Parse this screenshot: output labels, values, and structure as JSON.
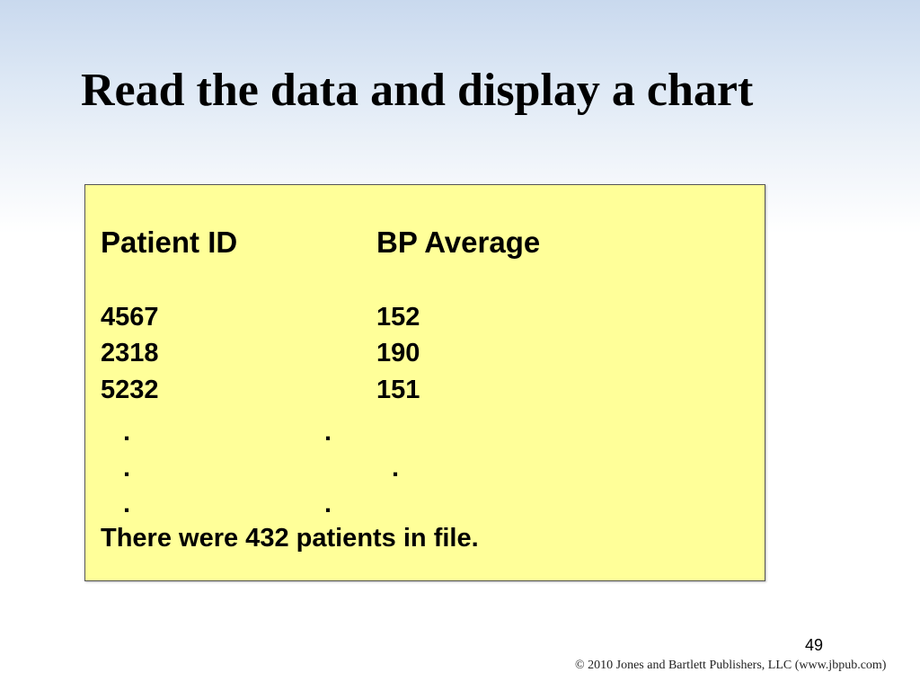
{
  "slide": {
    "title": "Read the data and display a chart",
    "page_number": "49",
    "copyright": "© 2010 Jones and Bartlett Publishers, LLC (www.jbpub.com)"
  },
  "data_box": {
    "headers": [
      "Patient ID",
      "BP Average"
    ],
    "rows": [
      {
        "id": "4567",
        "bp": "152"
      },
      {
        "id": "2318",
        "bp": "190"
      },
      {
        "id": "5232",
        "bp": "151"
      }
    ],
    "ellipsis_dot": ".",
    "summary": "There were 432 patients in file."
  }
}
